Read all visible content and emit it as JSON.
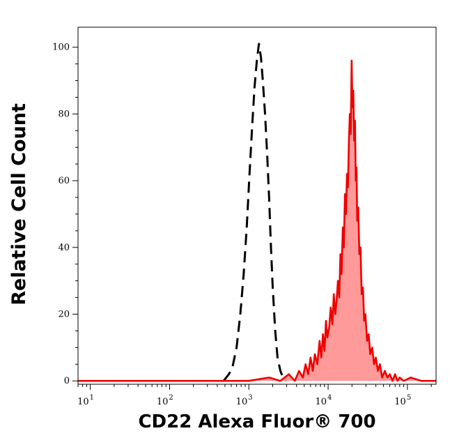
{
  "chart_data": {
    "type": "area",
    "xlabel": "CD22 Alexa Fluor® 700",
    "ylabel": "Relative Cell Count",
    "x_scale": "log",
    "xlim": [
      7,
      230000
    ],
    "ylim": [
      -1,
      106
    ],
    "x_ticks": [
      {
        "base": "10",
        "exp": "1",
        "value": 10
      },
      {
        "base": "10",
        "exp": "2",
        "value": 100
      },
      {
        "base": "10",
        "exp": "3",
        "value": 1000
      },
      {
        "base": "10",
        "exp": "4",
        "value": 10000
      },
      {
        "base": "10",
        "exp": "5",
        "value": 100000
      }
    ],
    "y_ticks": [
      {
        "label": "0",
        "value": 0
      },
      {
        "label": "20",
        "value": 20
      },
      {
        "label": "40",
        "value": 40
      },
      {
        "label": "60",
        "value": 60
      },
      {
        "label": "80",
        "value": 80
      },
      {
        "label": "100",
        "value": 100
      }
    ],
    "series": [
      {
        "style": "dashed",
        "color": "#000000",
        "filled": false,
        "x": [
          480,
          560,
          620,
          700,
          780,
          860,
          940,
          1020,
          1100,
          1180,
          1260,
          1340,
          1420,
          1500,
          1600,
          1700,
          1800,
          1900,
          2000,
          2150,
          2300,
          2500,
          2700,
          3000
        ],
        "y": [
          0,
          2,
          4,
          10,
          20,
          32,
          46,
          62,
          76,
          88,
          96,
          101,
          97,
          90,
          80,
          68,
          55,
          40,
          28,
          15,
          7,
          3,
          1,
          0
        ]
      },
      {
        "style": "solid",
        "color": "#ee0000",
        "fill": "#ff9a9a",
        "filled": true,
        "x": [
          7,
          1000,
          1800,
          2500,
          3200,
          3800,
          4300,
          4800,
          5200,
          5600,
          6000,
          6400,
          6800,
          7300,
          7800,
          8200,
          8600,
          9000,
          9400,
          9800,
          10300,
          10800,
          11300,
          11800,
          12300,
          12800,
          13300,
          13800,
          14300,
          14800,
          15300,
          15800,
          16300,
          16800,
          17300,
          17800,
          18300,
          18800,
          19300,
          19800,
          20300,
          20800,
          21300,
          21800,
          22300,
          22800,
          23300,
          24000,
          24800,
          25600,
          26500,
          27500,
          28500,
          29500,
          31000,
          32500,
          34000,
          36000,
          38000,
          40000,
          42500,
          45000,
          48000,
          52000,
          56000,
          60000,
          65000,
          70000,
          75000,
          80000,
          90000,
          110000,
          150000,
          230000
        ],
        "y": [
          0,
          0,
          1,
          0,
          2,
          0,
          3,
          1,
          5,
          2,
          7,
          3,
          8,
          5,
          12,
          7,
          14,
          9,
          18,
          13,
          16,
          22,
          17,
          26,
          20,
          24,
          30,
          25,
          38,
          32,
          46,
          40,
          56,
          50,
          62,
          58,
          72,
          80,
          74,
          96,
          82,
          87,
          72,
          78,
          60,
          64,
          48,
          52,
          38,
          40,
          26,
          28,
          18,
          20,
          12,
          14,
          8,
          10,
          5,
          7,
          3,
          5,
          1,
          3,
          1,
          2,
          0,
          2,
          0,
          1,
          0,
          1,
          0,
          0
        ]
      }
    ]
  }
}
